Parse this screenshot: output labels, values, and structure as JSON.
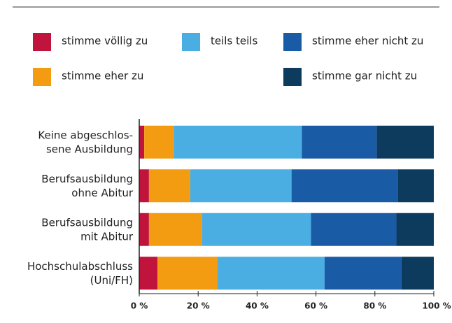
{
  "chart_data": {
    "type": "stacked-barh",
    "categories": [
      "Keine abgeschlos-\nsene Ausbildung",
      "Berufsausbildung\nohne Abitur",
      "Berufsausbildung\nmit Abitur",
      "Hochschulabschluss\n(Uni/FH)"
    ],
    "series": [
      {
        "name": "stimme völlig zu",
        "color": "#c0143c",
        "values": [
          1.7,
          3.3,
          3.3,
          6.2
        ]
      },
      {
        "name": "stimme eher zu",
        "color": "#f39c12",
        "values": [
          10,
          14,
          18,
          20.4
        ]
      },
      {
        "name": "teils teils",
        "color": "#4aaee3",
        "values": [
          43.5,
          34.4,
          37,
          36.3
        ]
      },
      {
        "name": "stimme eher nicht zu",
        "color": "#1a5ba6",
        "values": [
          25.4,
          36.1,
          29,
          26.1
        ]
      },
      {
        "name": "stimme gar nicht zu",
        "color": "#0c3b5e",
        "values": [
          19.4,
          12.2,
          12.7,
          11.0
        ]
      }
    ],
    "xlim": [
      0,
      100
    ],
    "xticks": [
      {
        "value": 0,
        "label": "0 %"
      },
      {
        "value": 20,
        "label": "20 %"
      },
      {
        "value": 40,
        "label": "40 %"
      },
      {
        "value": 60,
        "label": "60 %"
      },
      {
        "value": 80,
        "label": "80 %"
      },
      {
        "value": 100,
        "label": "100 %"
      }
    ],
    "legend": "top"
  }
}
